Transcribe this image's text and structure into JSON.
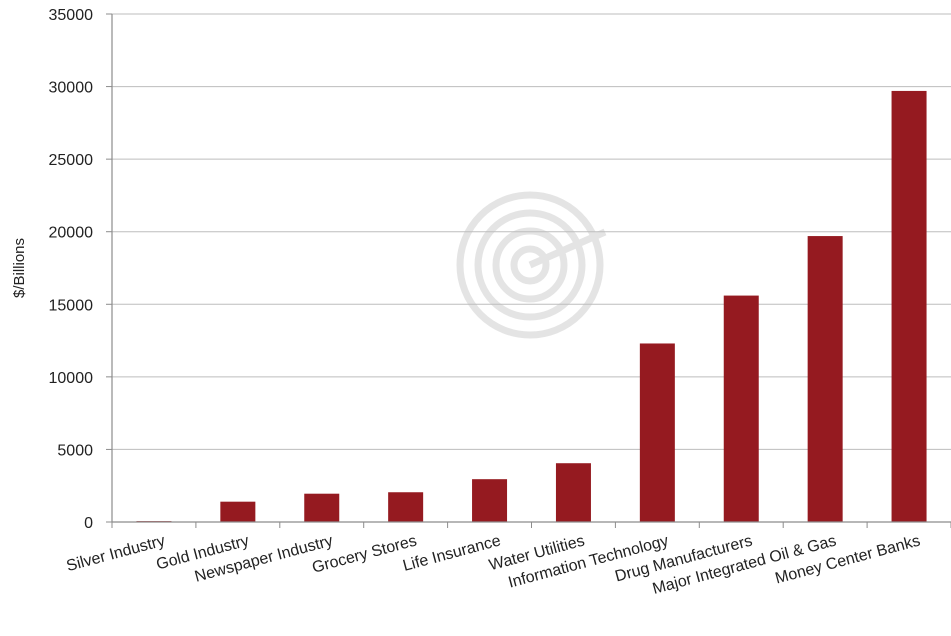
{
  "chart_data": {
    "type": "bar",
    "ylabel": "$/Billions",
    "xlabel": "",
    "ylim": [
      0,
      35000
    ],
    "yticks": [
      0,
      5000,
      10000,
      15000,
      20000,
      25000,
      30000,
      35000
    ],
    "categories": [
      "Silver Industry",
      "Gold Industry",
      "Newspaper Industry",
      "Grocery Stores",
      "Life Insurance",
      "Water Utilities",
      "Information Technology",
      "Drug Manufacturers",
      "Major Integrated Oil & Gas",
      "Money Center Banks"
    ],
    "values": [
      60,
      1400,
      1950,
      2050,
      2950,
      4050,
      12300,
      15600,
      19700,
      29700
    ],
    "bar_color": "#951A20",
    "grid": true,
    "legend": "none"
  }
}
